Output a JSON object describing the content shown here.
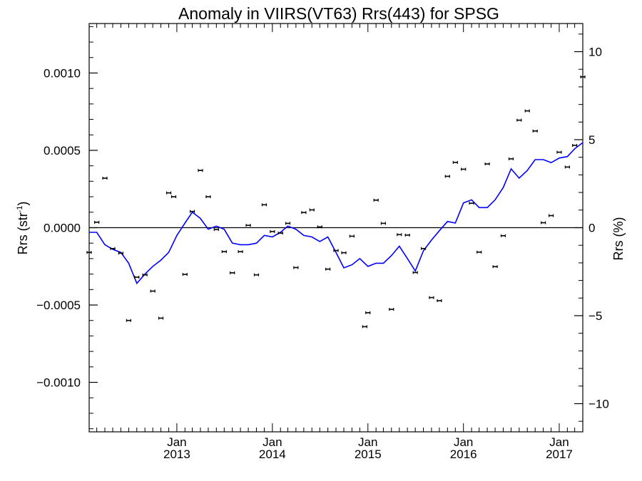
{
  "chart_data": {
    "type": "scatter",
    "title": "Anomaly in VIIRS(VT63) Rrs(443) for SPSG",
    "ylabel_left": "Rrs (str",
    "ylabel_left_sup": "-1",
    "ylabel_left_close": ")",
    "ylabel_right": "Rrs (%)",
    "x_range": [
      "2012-02-01",
      "2017-04-01"
    ],
    "ylim_left": [
      -0.00132,
      0.00132
    ],
    "ylim_right": [
      -11.6,
      11.6
    ],
    "grid": false,
    "left_ticks": [
      {
        "value": 0.001,
        "label": "0.0010"
      },
      {
        "value": 0.0005,
        "label": "0.0005"
      },
      {
        "value": 0.0,
        "label": "0.0000"
      },
      {
        "value": -0.0005,
        "label": "−0.0005"
      },
      {
        "value": -0.001,
        "label": "−0.0010"
      }
    ],
    "right_ticks": [
      {
        "value": 10,
        "label": "10"
      },
      {
        "value": 5,
        "label": "5"
      },
      {
        "value": 0,
        "label": "0"
      },
      {
        "value": -5,
        "label": "−5"
      },
      {
        "value": -10,
        "label": "−10"
      }
    ],
    "x_ticks": [
      {
        "date": "2013-01-01",
        "month": "Jan",
        "year": "2013"
      },
      {
        "date": "2014-01-01",
        "month": "Jan",
        "year": "2014"
      },
      {
        "date": "2015-01-01",
        "month": "Jan",
        "year": "2015"
      },
      {
        "date": "2016-01-01",
        "month": "Jan",
        "year": "2016"
      },
      {
        "date": "2017-01-01",
        "month": "Jan",
        "year": "2017"
      }
    ],
    "zero_line": 0,
    "point_color": "#000000",
    "line_color": "#0000ff",
    "points": [
      {
        "x": "2012-02-01",
        "y": -0.00016
      },
      {
        "x": "2012-03-01",
        "y": 3.5e-05
      },
      {
        "x": "2012-04-01",
        "y": 0.00032
      },
      {
        "x": "2012-05-01",
        "y": -0.000135
      },
      {
        "x": "2012-06-01",
        "y": -0.000165
      },
      {
        "x": "2012-07-01",
        "y": -0.0006
      },
      {
        "x": "2012-08-01",
        "y": -0.00032
      },
      {
        "x": "2012-09-01",
        "y": -0.000305
      },
      {
        "x": "2012-10-01",
        "y": -0.00041
      },
      {
        "x": "2012-11-01",
        "y": -0.000585
      },
      {
        "x": "2012-12-01",
        "y": 0.000225
      },
      {
        "x": "2012-12-20",
        "y": 0.0002
      },
      {
        "x": "2013-02-01",
        "y": -0.000302
      },
      {
        "x": "2013-03-01",
        "y": 0.000105
      },
      {
        "x": "2013-04-01",
        "y": 0.00037
      },
      {
        "x": "2013-05-01",
        "y": 0.0002
      },
      {
        "x": "2013-06-01",
        "y": -1.2e-05
      },
      {
        "x": "2013-07-01",
        "y": -0.000155
      },
      {
        "x": "2013-08-01",
        "y": -0.000292
      },
      {
        "x": "2013-09-01",
        "y": -0.000155
      },
      {
        "x": "2013-10-01",
        "y": 1.5e-05
      },
      {
        "x": "2013-11-01",
        "y": -0.000305
      },
      {
        "x": "2013-12-01",
        "y": 0.000148
      },
      {
        "x": "2014-01-01",
        "y": -2.5e-05
      },
      {
        "x": "2014-02-01",
        "y": -3.5e-05
      },
      {
        "x": "2014-03-01",
        "y": 2.8e-05
      },
      {
        "x": "2014-04-01",
        "y": -0.000258
      },
      {
        "x": "2014-05-01",
        "y": 9.8e-05
      },
      {
        "x": "2014-06-01",
        "y": 0.000115
      },
      {
        "x": "2014-07-01",
        "y": 5e-06
      },
      {
        "x": "2014-08-01",
        "y": -0.000268
      },
      {
        "x": "2014-09-01",
        "y": -0.000148
      },
      {
        "x": "2014-10-01",
        "y": -0.000162
      },
      {
        "x": "2014-11-01",
        "y": -5.5e-05
      },
      {
        "x": "2014-12-20",
        "y": -0.00064
      },
      {
        "x": "2015-01-01",
        "y": -0.00055
      },
      {
        "x": "2015-02-01",
        "y": 0.000178
      },
      {
        "x": "2015-03-01",
        "y": 2.8e-05
      },
      {
        "x": "2015-04-01",
        "y": -0.000528
      },
      {
        "x": "2015-05-01",
        "y": -4.5e-05
      },
      {
        "x": "2015-06-01",
        "y": -4.8e-05
      },
      {
        "x": "2015-07-01",
        "y": -0.00029
      },
      {
        "x": "2015-08-01",
        "y": -0.000135
      },
      {
        "x": "2015-09-01",
        "y": -0.000452
      },
      {
        "x": "2015-10-01",
        "y": -0.000472
      },
      {
        "x": "2015-11-01",
        "y": 0.000332
      },
      {
        "x": "2015-12-01",
        "y": 0.000422
      },
      {
        "x": "2016-01-01",
        "y": 0.000378
      },
      {
        "x": "2016-02-01",
        "y": 0.000158
      },
      {
        "x": "2016-03-01",
        "y": -0.000158
      },
      {
        "x": "2016-04-01",
        "y": 0.000412
      },
      {
        "x": "2016-05-01",
        "y": -0.000252
      },
      {
        "x": "2016-06-01",
        "y": -5.2e-05
      },
      {
        "x": "2016-07-01",
        "y": 0.000445
      },
      {
        "x": "2016-08-01",
        "y": 0.000695
      },
      {
        "x": "2016-09-01",
        "y": 0.000755
      },
      {
        "x": "2016-10-01",
        "y": 0.000625
      },
      {
        "x": "2016-11-01",
        "y": 3.2e-05
      },
      {
        "x": "2016-12-01",
        "y": 7.8e-05
      },
      {
        "x": "2017-01-01",
        "y": 0.000488
      },
      {
        "x": "2017-02-01",
        "y": 0.000392
      },
      {
        "x": "2017-03-01",
        "y": 0.000532
      },
      {
        "x": "2017-04-01",
        "y": 0.000975
      }
    ],
    "running_mean": [
      {
        "x": "2012-02-01",
        "y": -3e-05
      },
      {
        "x": "2012-03-01",
        "y": -3e-05
      },
      {
        "x": "2012-04-01",
        "y": -0.00011
      },
      {
        "x": "2012-05-01",
        "y": -0.00014
      },
      {
        "x": "2012-06-01",
        "y": -0.00016
      },
      {
        "x": "2012-07-01",
        "y": -0.00023
      },
      {
        "x": "2012-08-01",
        "y": -0.00036
      },
      {
        "x": "2012-09-01",
        "y": -0.0003
      },
      {
        "x": "2012-10-01",
        "y": -0.00025
      },
      {
        "x": "2012-11-01",
        "y": -0.00021
      },
      {
        "x": "2012-12-01",
        "y": -0.00016
      },
      {
        "x": "2013-01-01",
        "y": -5e-05
      },
      {
        "x": "2013-02-01",
        "y": 3e-05
      },
      {
        "x": "2013-03-01",
        "y": 0.0001
      },
      {
        "x": "2013-04-01",
        "y": 6e-05
      },
      {
        "x": "2013-05-01",
        "y": -1e-05
      },
      {
        "x": "2013-06-01",
        "y": 1e-05
      },
      {
        "x": "2013-07-01",
        "y": -1e-05
      },
      {
        "x": "2013-08-01",
        "y": -0.0001
      },
      {
        "x": "2013-09-01",
        "y": -0.00011
      },
      {
        "x": "2013-10-01",
        "y": -0.00011
      },
      {
        "x": "2013-11-01",
        "y": -0.0001
      },
      {
        "x": "2013-12-01",
        "y": -5e-05
      },
      {
        "x": "2014-01-01",
        "y": -6e-05
      },
      {
        "x": "2014-02-01",
        "y": -3e-05
      },
      {
        "x": "2014-03-01",
        "y": 1e-05
      },
      {
        "x": "2014-04-01",
        "y": -1e-05
      },
      {
        "x": "2014-05-01",
        "y": -5e-05
      },
      {
        "x": "2014-06-01",
        "y": -6e-05
      },
      {
        "x": "2014-07-01",
        "y": -9e-05
      },
      {
        "x": "2014-08-01",
        "y": -6e-05
      },
      {
        "x": "2014-09-01",
        "y": -0.00016
      },
      {
        "x": "2014-10-01",
        "y": -0.00026
      },
      {
        "x": "2014-11-01",
        "y": -0.00024
      },
      {
        "x": "2014-12-01",
        "y": -0.0002
      },
      {
        "x": "2015-01-01",
        "y": -0.00025
      },
      {
        "x": "2015-02-01",
        "y": -0.00023
      },
      {
        "x": "2015-03-01",
        "y": -0.00023
      },
      {
        "x": "2015-04-01",
        "y": -0.00018
      },
      {
        "x": "2015-05-01",
        "y": -0.00012
      },
      {
        "x": "2015-06-01",
        "y": -0.0002
      },
      {
        "x": "2015-07-01",
        "y": -0.00028
      },
      {
        "x": "2015-08-01",
        "y": -0.00015
      },
      {
        "x": "2015-09-01",
        "y": -8e-05
      },
      {
        "x": "2015-10-01",
        "y": -2e-05
      },
      {
        "x": "2015-11-01",
        "y": 4e-05
      },
      {
        "x": "2015-12-01",
        "y": 3e-05
      },
      {
        "x": "2016-01-01",
        "y": 0.00016
      },
      {
        "x": "2016-02-01",
        "y": 0.00018
      },
      {
        "x": "2016-03-01",
        "y": 0.00013
      },
      {
        "x": "2016-04-01",
        "y": 0.00013
      },
      {
        "x": "2016-05-01",
        "y": 0.00018
      },
      {
        "x": "2016-06-01",
        "y": 0.00026
      },
      {
        "x": "2016-07-01",
        "y": 0.00038
      },
      {
        "x": "2016-08-01",
        "y": 0.00032
      },
      {
        "x": "2016-09-01",
        "y": 0.00037
      },
      {
        "x": "2016-10-01",
        "y": 0.00044
      },
      {
        "x": "2016-11-01",
        "y": 0.00044
      },
      {
        "x": "2016-12-01",
        "y": 0.00042
      },
      {
        "x": "2017-01-01",
        "y": 0.00045
      },
      {
        "x": "2017-02-01",
        "y": 0.00046
      },
      {
        "x": "2017-03-01",
        "y": 0.00051
      },
      {
        "x": "2017-04-01",
        "y": 0.00055
      }
    ]
  }
}
